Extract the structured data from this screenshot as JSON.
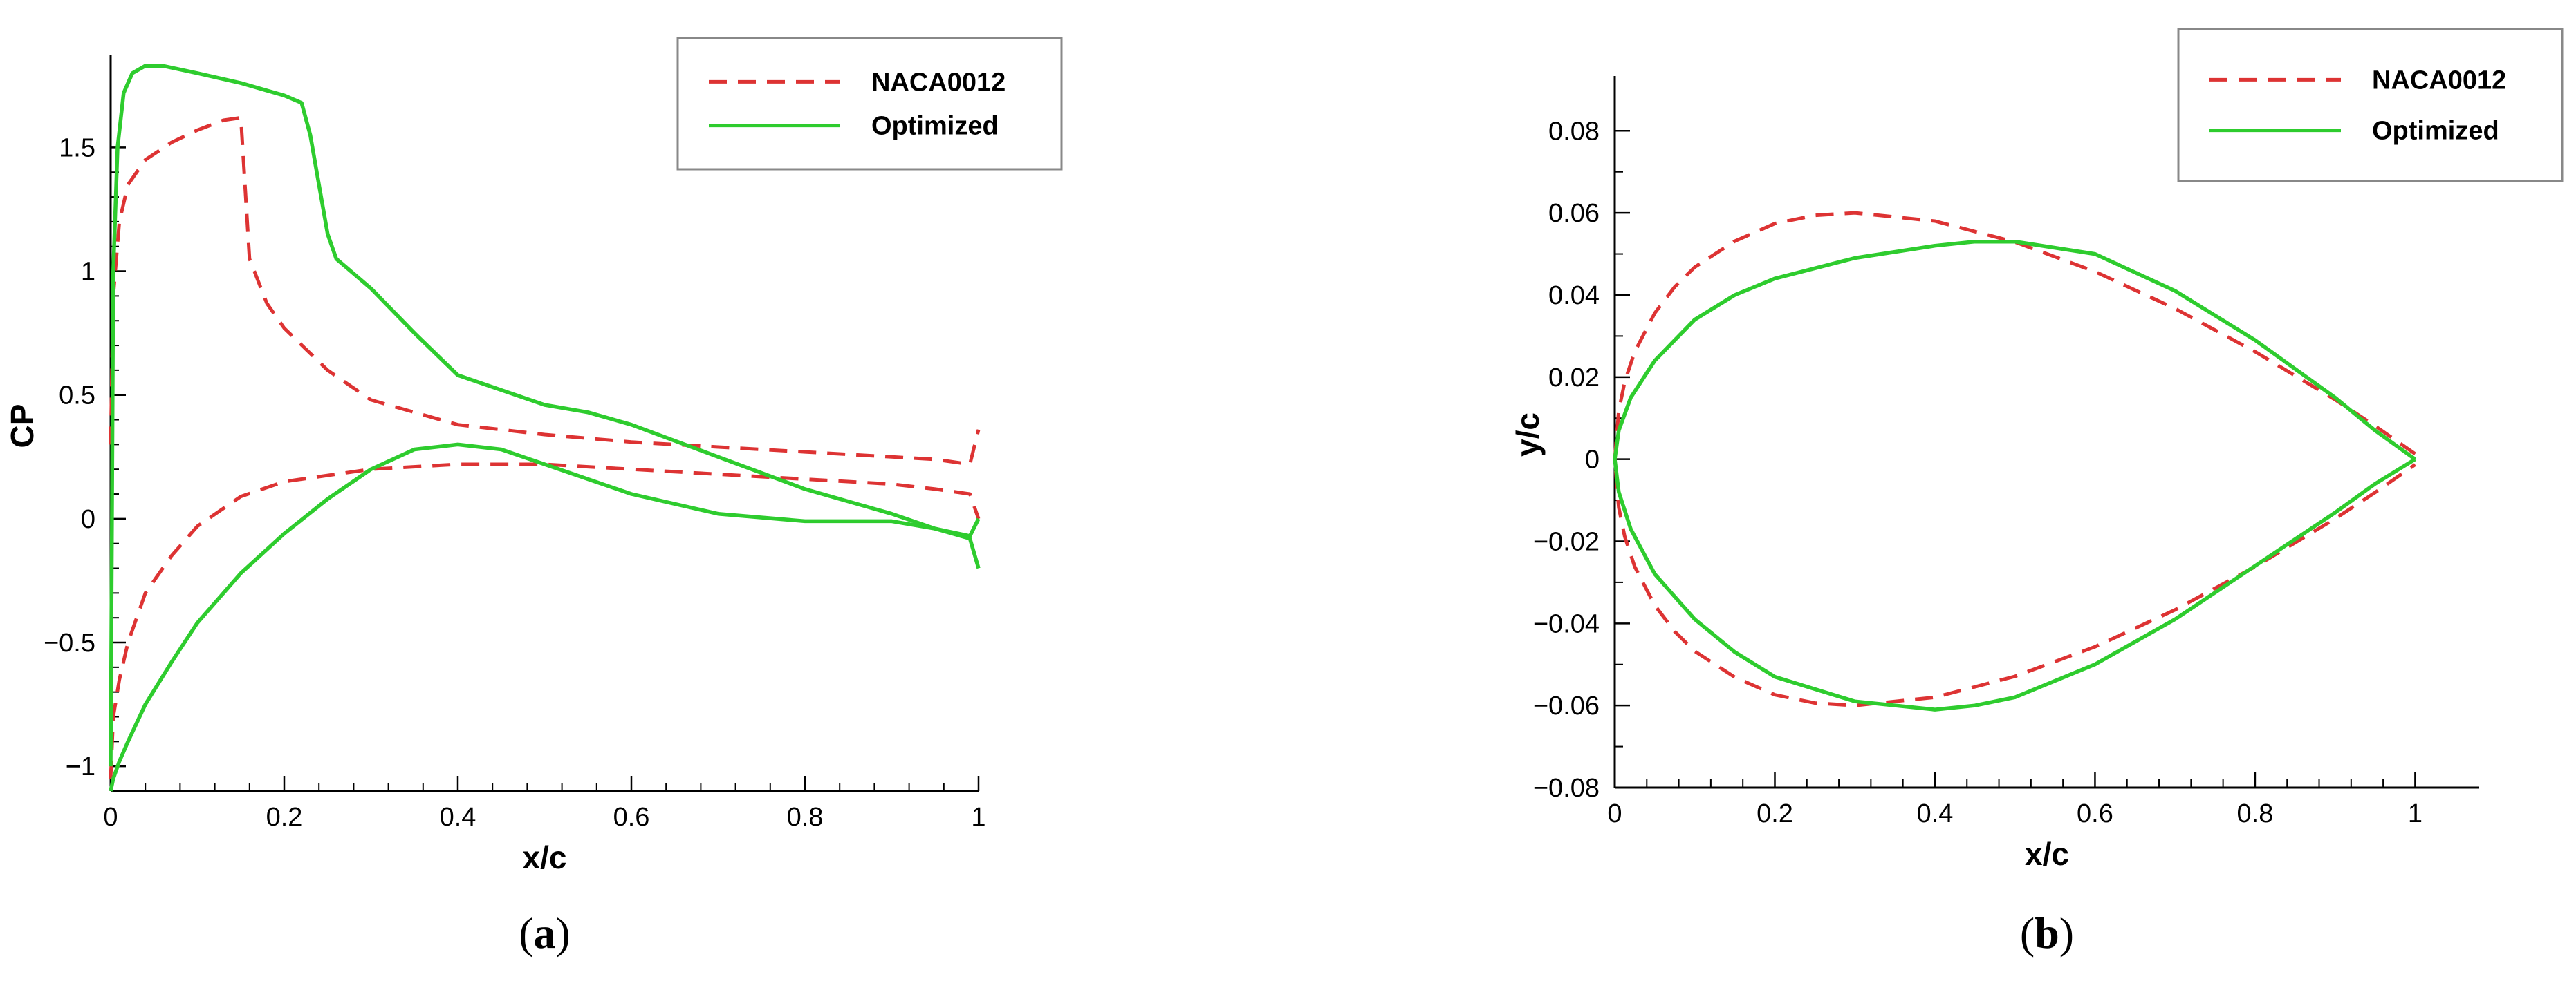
{
  "colors": {
    "baseline": "#dd3333",
    "optimized": "#2ecc2e",
    "axis": "#000000"
  },
  "chart_data": [
    {
      "id": "a",
      "type": "line",
      "caption": "a",
      "xlabel": "x/c",
      "ylabel": "CP",
      "xlim": [
        0,
        1
      ],
      "ylim": [
        -1.1,
        1.85
      ],
      "xticks": [
        0,
        0.2,
        0.4,
        0.6,
        0.8,
        1
      ],
      "xtick_labels": [
        "0",
        "0.2",
        "0.4",
        "0.6",
        "0.8",
        "1"
      ],
      "yticks": [
        -1,
        -0.5,
        0,
        0.5,
        1,
        1.5
      ],
      "ytick_labels": [
        "−1",
        "−0.5",
        "0",
        "0.5",
        "1",
        "1.5"
      ],
      "legend": {
        "position": "top-right",
        "entries": [
          "NACA0012",
          "Optimized"
        ]
      },
      "series": [
        {
          "name": "NACA0012",
          "style": "dashed",
          "x": [
            0,
            0.003,
            0.01,
            0.02,
            0.04,
            0.07,
            0.1,
            0.13,
            0.15,
            0.16,
            0.18,
            0.2,
            0.25,
            0.3,
            0.4,
            0.5,
            0.6,
            0.7,
            0.8,
            0.9,
            0.95,
            0.99,
            1.0
          ],
          "y": [
            0.3,
            0.9,
            1.2,
            1.35,
            1.45,
            1.52,
            1.57,
            1.61,
            1.62,
            1.05,
            0.87,
            0.77,
            0.6,
            0.48,
            0.38,
            0.34,
            0.31,
            0.29,
            0.27,
            0.25,
            0.24,
            0.22,
            0.36
          ]
        },
        {
          "name": "NACA0012",
          "style": "dashed",
          "x": [
            0,
            0.003,
            0.01,
            0.02,
            0.04,
            0.07,
            0.1,
            0.15,
            0.2,
            0.3,
            0.4,
            0.5,
            0.6,
            0.7,
            0.8,
            0.9,
            0.95,
            0.99,
            1.0
          ],
          "y": [
            -1.05,
            -0.8,
            -0.65,
            -0.5,
            -0.3,
            -0.15,
            -0.03,
            0.09,
            0.15,
            0.2,
            0.22,
            0.22,
            0.2,
            0.18,
            0.16,
            0.14,
            0.12,
            0.1,
            0.0
          ]
        },
        {
          "name": "Optimized",
          "style": "solid",
          "x": [
            0,
            0.003,
            0.008,
            0.015,
            0.025,
            0.04,
            0.06,
            0.1,
            0.15,
            0.2,
            0.22,
            0.23,
            0.24,
            0.25,
            0.26,
            0.3,
            0.35,
            0.4,
            0.5,
            0.55,
            0.6,
            0.7,
            0.8,
            0.9,
            0.95,
            0.99,
            1.0
          ],
          "y": [
            -1.0,
            1.0,
            1.5,
            1.72,
            1.8,
            1.83,
            1.83,
            1.8,
            1.76,
            1.71,
            1.68,
            1.55,
            1.35,
            1.15,
            1.05,
            0.93,
            0.75,
            0.58,
            0.46,
            0.43,
            0.38,
            0.25,
            0.12,
            0.02,
            -0.04,
            -0.08,
            -0.2
          ]
        },
        {
          "name": "Optimized",
          "style": "solid",
          "x": [
            0,
            0.003,
            0.01,
            0.02,
            0.04,
            0.07,
            0.1,
            0.15,
            0.2,
            0.25,
            0.3,
            0.35,
            0.4,
            0.45,
            0.5,
            0.6,
            0.7,
            0.8,
            0.9,
            0.95,
            0.99,
            1.0
          ],
          "y": [
            -1.1,
            -1.05,
            -0.98,
            -0.9,
            -0.75,
            -0.58,
            -0.42,
            -0.22,
            -0.06,
            0.08,
            0.2,
            0.28,
            0.3,
            0.28,
            0.22,
            0.1,
            0.02,
            -0.01,
            -0.01,
            -0.04,
            -0.07,
            0.0
          ]
        }
      ]
    },
    {
      "id": "b",
      "type": "line",
      "caption": "b",
      "xlabel": "x/c",
      "ylabel": "y/c",
      "xlim": [
        0,
        1.08
      ],
      "ylim": [
        -0.08,
        0.092
      ],
      "xticks": [
        0,
        0.2,
        0.4,
        0.6,
        0.8,
        1
      ],
      "xtick_labels": [
        "0",
        "0.2",
        "0.4",
        "0.6",
        "0.8",
        "1"
      ],
      "yticks": [
        -0.08,
        -0.06,
        -0.04,
        -0.02,
        0,
        0.02,
        0.04,
        0.06,
        0.08
      ],
      "ytick_labels": [
        "−0.08",
        "−0.06",
        "−0.04",
        "−0.02",
        "0",
        "0.02",
        "0.04",
        "0.06",
        "0.08"
      ],
      "legend": {
        "position": "top-right",
        "entries": [
          "NACA0012",
          "Optimized"
        ]
      },
      "series": [
        {
          "name": "NACA0012",
          "style": "dashed",
          "x": [
            1.0,
            0.95,
            0.9,
            0.8,
            0.7,
            0.6,
            0.5,
            0.4,
            0.3,
            0.25,
            0.2,
            0.15,
            0.1,
            0.075,
            0.05,
            0.025,
            0.0125,
            0.005,
            0.0,
            0.005,
            0.0125,
            0.025,
            0.05,
            0.075,
            0.1,
            0.15,
            0.2,
            0.25,
            0.3,
            0.4,
            0.5,
            0.6,
            0.7,
            0.8,
            0.9,
            0.95,
            1.0
          ],
          "y": [
            0.0013,
            0.0081,
            0.0145,
            0.0262,
            0.0367,
            0.0457,
            0.0529,
            0.058,
            0.06,
            0.0594,
            0.0574,
            0.0531,
            0.0468,
            0.042,
            0.0356,
            0.0262,
            0.0189,
            0.0118,
            0.0,
            -0.0118,
            -0.0189,
            -0.0262,
            -0.0356,
            -0.042,
            -0.0468,
            -0.0531,
            -0.0574,
            -0.0594,
            -0.06,
            -0.058,
            -0.0529,
            -0.0457,
            -0.0367,
            -0.0262,
            -0.0145,
            -0.0081,
            -0.0013
          ]
        },
        {
          "name": "Optimized",
          "style": "solid",
          "x": [
            1.0,
            0.95,
            0.9,
            0.8,
            0.7,
            0.6,
            0.5,
            0.45,
            0.4,
            0.3,
            0.2,
            0.15,
            0.1,
            0.05,
            0.02,
            0.005,
            0.0,
            0.005,
            0.02,
            0.05,
            0.1,
            0.15,
            0.2,
            0.3,
            0.4,
            0.45,
            0.5,
            0.6,
            0.7,
            0.8,
            0.9,
            0.95,
            1.0
          ],
          "y": [
            0.0,
            0.007,
            0.015,
            0.029,
            0.041,
            0.05,
            0.053,
            0.053,
            0.052,
            0.049,
            0.044,
            0.04,
            0.034,
            0.024,
            0.015,
            0.007,
            0.0,
            -0.008,
            -0.017,
            -0.028,
            -0.039,
            -0.047,
            -0.053,
            -0.059,
            -0.061,
            -0.06,
            -0.058,
            -0.05,
            -0.039,
            -0.026,
            -0.013,
            -0.006,
            0.0
          ]
        }
      ]
    }
  ]
}
